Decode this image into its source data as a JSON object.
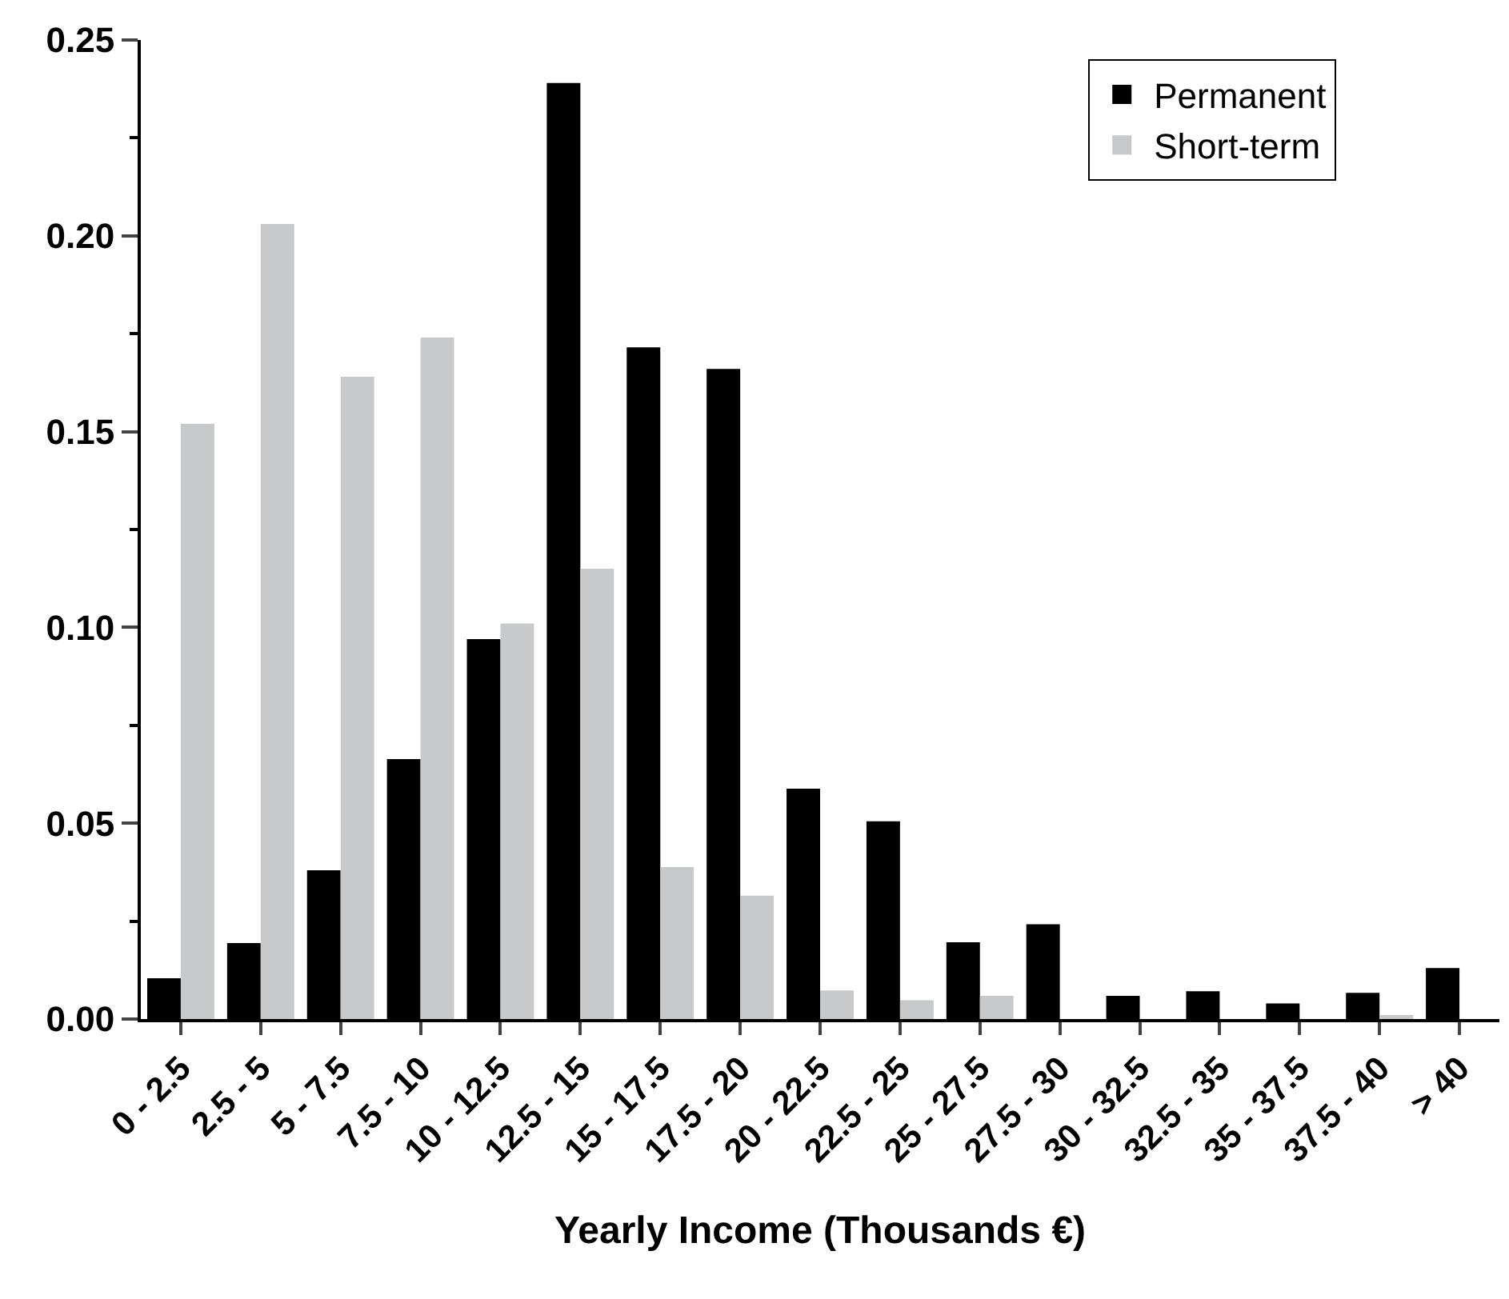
{
  "chart_data": {
    "type": "bar",
    "xlabel": "Yearly Income (Thousands €)",
    "categories": [
      "0 - 2.5",
      "2.5 - 5",
      "5 - 7.5",
      "7.5 - 10",
      "10 - 12.5",
      "12.5 - 15",
      "15 - 17.5",
      "17.5 - 20",
      "20 - 22.5",
      "22.5 - 25",
      "25 - 27.5",
      "27.5 - 30",
      "30 - 32.5",
      "32.5 - 35",
      "35 - 37.5",
      "37.5 - 40",
      "> 40"
    ],
    "series": [
      {
        "name": "Permanent",
        "color": "#000000",
        "values": [
          0.0104,
          0.0194,
          0.038,
          0.0664,
          0.097,
          0.239,
          0.1715,
          0.166,
          0.0588,
          0.0505,
          0.0196,
          0.0242,
          0.0059,
          0.0071,
          0.004,
          0.0067,
          0.013
        ]
      },
      {
        "name": "Short-term",
        "color": "#c8c9cb",
        "values": [
          0.152,
          0.203,
          0.164,
          0.174,
          0.101,
          0.115,
          0.0388,
          0.0315,
          0.0073,
          0.0048,
          0.0059,
          0.0,
          0.0,
          0.0,
          0.0,
          0.001,
          0.0
        ]
      }
    ],
    "ylim": [
      0,
      0.25
    ],
    "yticks": [
      {
        "value": 0,
        "label": "0.00"
      },
      {
        "value": 0.025,
        "label": null
      },
      {
        "value": 0.05,
        "label": "0.05"
      },
      {
        "value": 0.075,
        "label": null
      },
      {
        "value": 0.1,
        "label": "0.10"
      },
      {
        "value": 0.125,
        "label": null
      },
      {
        "value": 0.15,
        "label": "0.15"
      },
      {
        "value": 0.175,
        "label": null
      },
      {
        "value": 0.2,
        "label": "0.20"
      },
      {
        "value": 0.225,
        "label": null
      },
      {
        "value": 0.25,
        "label": "0.25"
      }
    ],
    "legend": "top right"
  }
}
